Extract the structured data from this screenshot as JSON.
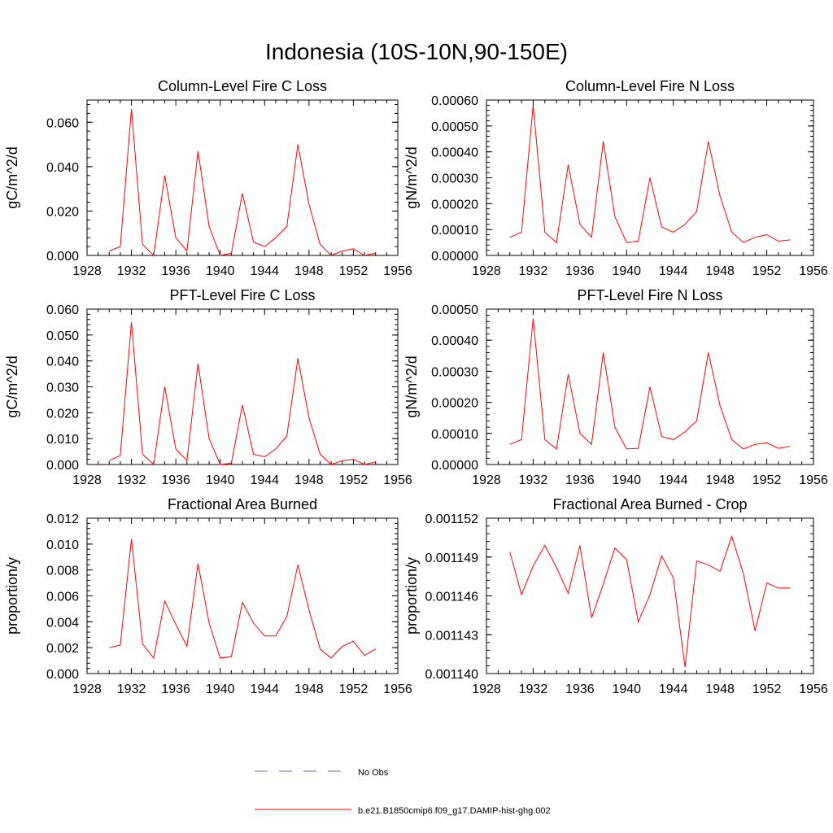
{
  "title": "Indonesia (10S-10N,90-150E)",
  "legend": [
    {
      "label": "No Obs",
      "color": "#6b6bb8",
      "style": "dashed"
    },
    {
      "label": "b.e21.B1850cmip6.f09_g17.DAMIP-hist-ghg.002",
      "color": "#ff0000",
      "style": "solid"
    }
  ],
  "chart_data": [
    {
      "type": "line",
      "title": "Column-Level Fire C Loss",
      "ylabel": "gC/m^2/d",
      "xlim": [
        1928,
        1956
      ],
      "ylim": [
        0,
        0.07
      ],
      "xticks": [
        "1928",
        "1932",
        "1936",
        "1940",
        "1944",
        "1948",
        "1952",
        "1956"
      ],
      "yticks": [
        "0.000",
        "0.020",
        "0.040",
        "0.060"
      ],
      "ytick_values": [
        0,
        0.02,
        0.04,
        0.06
      ],
      "x": [
        1930,
        1931,
        1932,
        1933,
        1934,
        1935,
        1936,
        1937,
        1938,
        1939,
        1940,
        1941,
        1942,
        1943,
        1944,
        1945,
        1946,
        1947,
        1948,
        1949,
        1950,
        1951,
        1952,
        1953,
        1954
      ],
      "series": [
        {
          "color": "#ff0000",
          "values": [
            0.002,
            0.004,
            0.066,
            0.005,
            0.0,
            0.036,
            0.008,
            0.002,
            0.047,
            0.013,
            0.0,
            0.001,
            0.028,
            0.006,
            0.004,
            0.008,
            0.013,
            0.05,
            0.023,
            0.005,
            0.0,
            0.002,
            0.003,
            0.0,
            0.001
          ]
        }
      ]
    },
    {
      "type": "line",
      "title": "Column-Level Fire N Loss",
      "ylabel": "gN/m^2/d",
      "xlim": [
        1928,
        1956
      ],
      "ylim": [
        0,
        0.0006
      ],
      "xticks": [
        "1928",
        "1932",
        "1936",
        "1940",
        "1944",
        "1948",
        "1952",
        "1956"
      ],
      "yticks": [
        "0.00000",
        "0.00010",
        "0.00020",
        "0.00030",
        "0.00040",
        "0.00050",
        "0.00060"
      ],
      "ytick_values": [
        0,
        0.0001,
        0.0002,
        0.0003,
        0.0004,
        0.0005,
        0.0006
      ],
      "x": [
        1930,
        1931,
        1932,
        1933,
        1934,
        1935,
        1936,
        1937,
        1938,
        1939,
        1940,
        1941,
        1942,
        1943,
        1944,
        1945,
        1946,
        1947,
        1948,
        1949,
        1950,
        1951,
        1952,
        1953,
        1954
      ],
      "series": [
        {
          "color": "#ff0000",
          "values": [
            7e-05,
            9e-05,
            0.00058,
            9e-05,
            5e-05,
            0.00035,
            0.00012,
            7e-05,
            0.00044,
            0.00015,
            5e-05,
            5.5e-05,
            0.0003,
            0.00011,
            9e-05,
            0.00012,
            0.00017,
            0.00044,
            0.00023,
            9e-05,
            5e-05,
            7e-05,
            8e-05,
            5.5e-05,
            6e-05
          ]
        }
      ]
    },
    {
      "type": "line",
      "title": "PFT-Level Fire C Loss",
      "ylabel": "gC/m^2/d",
      "xlim": [
        1928,
        1956
      ],
      "ylim": [
        0,
        0.06
      ],
      "xticks": [
        "1928",
        "1932",
        "1936",
        "1940",
        "1944",
        "1948",
        "1952",
        "1956"
      ],
      "yticks": [
        "0.000",
        "0.010",
        "0.020",
        "0.030",
        "0.040",
        "0.050",
        "0.060"
      ],
      "ytick_values": [
        0,
        0.01,
        0.02,
        0.03,
        0.04,
        0.05,
        0.06
      ],
      "x": [
        1930,
        1931,
        1932,
        1933,
        1934,
        1935,
        1936,
        1937,
        1938,
        1939,
        1940,
        1941,
        1942,
        1943,
        1944,
        1945,
        1946,
        1947,
        1948,
        1949,
        1950,
        1951,
        1952,
        1953,
        1954
      ],
      "series": [
        {
          "color": "#ff0000",
          "values": [
            0.0015,
            0.0035,
            0.055,
            0.004,
            0.0,
            0.03,
            0.006,
            0.0015,
            0.039,
            0.01,
            0.0,
            0.0005,
            0.023,
            0.004,
            0.003,
            0.006,
            0.011,
            0.041,
            0.018,
            0.004,
            0.0,
            0.0015,
            0.002,
            0.0,
            0.001
          ]
        }
      ]
    },
    {
      "type": "line",
      "title": "PFT-Level Fire N Loss",
      "ylabel": "gN/m^2/d",
      "xlim": [
        1928,
        1956
      ],
      "ylim": [
        0,
        0.0005
      ],
      "xticks": [
        "1928",
        "1932",
        "1936",
        "1940",
        "1944",
        "1948",
        "1952",
        "1956"
      ],
      "yticks": [
        "0.00000",
        "0.00010",
        "0.00020",
        "0.00030",
        "0.00040",
        "0.00050"
      ],
      "ytick_values": [
        0,
        0.0001,
        0.0002,
        0.0003,
        0.0004,
        0.0005
      ],
      "x": [
        1930,
        1931,
        1932,
        1933,
        1934,
        1935,
        1936,
        1937,
        1938,
        1939,
        1940,
        1941,
        1942,
        1943,
        1944,
        1945,
        1946,
        1947,
        1948,
        1949,
        1950,
        1951,
        1952,
        1953,
        1954
      ],
      "series": [
        {
          "color": "#ff0000",
          "values": [
            6.5e-05,
            8e-05,
            0.00047,
            8e-05,
            5e-05,
            0.00029,
            0.0001,
            6.5e-05,
            0.00036,
            0.00012,
            5e-05,
            5.2e-05,
            0.00025,
            9e-05,
            8e-05,
            0.000105,
            0.00014,
            0.00036,
            0.00019,
            8e-05,
            5e-05,
            6.5e-05,
            7e-05,
            5.2e-05,
            5.8e-05
          ]
        }
      ]
    },
    {
      "type": "line",
      "title": "Fractional Area Burned",
      "ylabel": "proportion/y",
      "xlim": [
        1928,
        1956
      ],
      "ylim": [
        0,
        0.012
      ],
      "xticks": [
        "1928",
        "1932",
        "1936",
        "1940",
        "1944",
        "1948",
        "1952",
        "1956"
      ],
      "yticks": [
        "0.000",
        "0.002",
        "0.004",
        "0.006",
        "0.008",
        "0.010",
        "0.012"
      ],
      "ytick_values": [
        0,
        0.002,
        0.004,
        0.006,
        0.008,
        0.01,
        0.012
      ],
      "x": [
        1930,
        1931,
        1932,
        1933,
        1934,
        1935,
        1936,
        1937,
        1938,
        1939,
        1940,
        1941,
        1942,
        1943,
        1944,
        1945,
        1946,
        1947,
        1948,
        1949,
        1950,
        1951,
        1952,
        1953,
        1954
      ],
      "series": [
        {
          "color": "#ff0000",
          "values": [
            0.002,
            0.0022,
            0.0104,
            0.0023,
            0.0012,
            0.0056,
            0.0038,
            0.0021,
            0.0085,
            0.0039,
            0.0012,
            0.0013,
            0.0055,
            0.0039,
            0.0029,
            0.0029,
            0.0044,
            0.0084,
            0.0049,
            0.0019,
            0.0012,
            0.0021,
            0.0025,
            0.0014,
            0.0019
          ]
        }
      ]
    },
    {
      "type": "line",
      "title": "Fractional Area Burned - Crop",
      "ylabel": "proportion/y",
      "xlim": [
        1928,
        1956
      ],
      "ylim": [
        0.00114,
        0.001152
      ],
      "xticks": [
        "1928",
        "1932",
        "1936",
        "1940",
        "1944",
        "1948",
        "1952",
        "1956"
      ],
      "yticks": [
        "0.001140",
        "0.001143",
        "0.001146",
        "0.001149",
        "0.001152"
      ],
      "ytick_values": [
        0.00114,
        0.001143,
        0.001146,
        0.001149,
        0.001152
      ],
      "x": [
        1930,
        1931,
        1932,
        1933,
        1934,
        1935,
        1936,
        1937,
        1938,
        1939,
        1940,
        1941,
        1942,
        1943,
        1944,
        1945,
        1946,
        1947,
        1948,
        1949,
        1950,
        1951,
        1952,
        1953,
        1954
      ],
      "series": [
        {
          "color": "#ff0000",
          "values": [
            0.0011494,
            0.0011461,
            0.0011483,
            0.0011499,
            0.0011482,
            0.0011462,
            0.0011499,
            0.0011443,
            0.0011469,
            0.0011497,
            0.0011488,
            0.001144,
            0.0011461,
            0.0011491,
            0.0011474,
            0.0011405,
            0.0011487,
            0.0011484,
            0.0011479,
            0.0011506,
            0.0011477,
            0.0011433,
            0.001147,
            0.0011466,
            0.0011466
          ]
        }
      ]
    }
  ]
}
